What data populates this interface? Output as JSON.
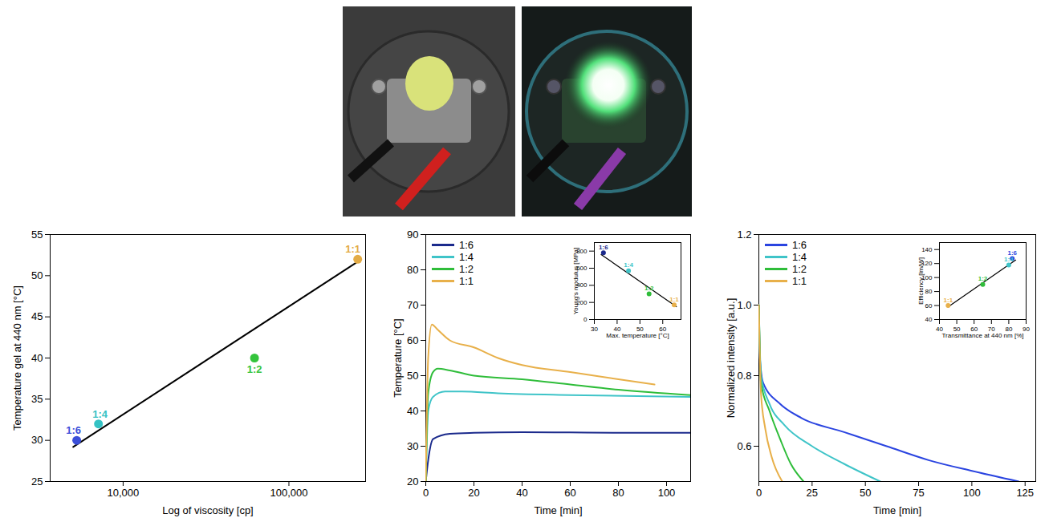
{
  "chart_data": [
    {
      "type": "scatter",
      "xlabel": "Log of viscosity [cp]",
      "ylabel": "Temperature gel at 440 nm [°C]",
      "log": "x",
      "categories": [
        "1:6",
        "1:4",
        "1:2",
        "1:1"
      ],
      "x": [
        5250,
        7100,
        62000,
        260000
      ],
      "values": [
        30,
        32,
        40,
        52
      ],
      "colors": [
        "#3b4fd9",
        "#35c2c4",
        "#34c43c",
        "#e3ab45"
      ],
      "fit": {
        "x": [
          5000,
          260000
        ],
        "values": [
          29.2,
          51.7
        ]
      },
      "xlim": [
        3630,
        290000
      ],
      "xticks": [
        {
          "value": 10000,
          "label": "10,000"
        },
        {
          "value": 100000,
          "label": "100,000"
        }
      ],
      "ylim": [
        25,
        55
      ],
      "yticks": [
        25,
        30,
        35,
        40,
        45,
        50,
        55
      ],
      "grid": false
    },
    {
      "type": "line",
      "xlabel": "Time [min]",
      "ylabel": "Temperature [°C]",
      "legend": "top-left",
      "series": [
        {
          "name": "1:6",
          "color": "#1b2a8c",
          "x": [
            0,
            1,
            3,
            10,
            20,
            40,
            60,
            80,
            110
          ],
          "values": [
            20,
            26,
            32,
            33.5,
            33.8,
            34,
            33.9,
            33.8,
            33.8
          ]
        },
        {
          "name": "1:4",
          "color": "#3fc4c8",
          "x": [
            0,
            1,
            3,
            8,
            15,
            30,
            60,
            110
          ],
          "values": [
            20,
            40,
            44,
            45.5,
            45.5,
            45,
            44.5,
            44
          ]
        },
        {
          "name": "1:2",
          "color": "#2fbd3a",
          "x": [
            0,
            1,
            3,
            5,
            10,
            20,
            40,
            60,
            80,
            110
          ],
          "values": [
            20,
            45,
            51,
            52,
            51.5,
            50,
            49,
            47.5,
            46,
            44.5
          ]
        },
        {
          "name": "1:1",
          "color": "#e8b04a",
          "x": [
            0,
            1,
            2.5,
            5,
            10,
            20,
            30,
            40,
            60,
            80,
            95
          ],
          "values": [
            20,
            55,
            64.5,
            63,
            60,
            58,
            55,
            53,
            51,
            49,
            47.5
          ]
        }
      ],
      "xlim": [
        0,
        110
      ],
      "xticks": [
        0,
        20,
        40,
        60,
        80,
        100
      ],
      "ylim": [
        20,
        90
      ],
      "yticks": [
        20,
        30,
        40,
        50,
        60,
        70,
        80,
        90
      ],
      "grid": false
    },
    {
      "type": "scatter",
      "xlabel": "Max. temperature [°C]",
      "ylabel": "Young's modulus [MPa]",
      "categories": [
        "1:6",
        "1:4",
        "1:2",
        "1:1"
      ],
      "x": [
        34,
        45,
        54,
        65
      ],
      "values": [
        780,
        570,
        300,
        170
      ],
      "colors": [
        "#1b2a8c",
        "#3fc4c8",
        "#2fbd3a",
        "#e8b04a"
      ],
      "fit": {
        "x": [
          33,
          66
        ],
        "values": [
          760,
          150
        ]
      },
      "xlim": [
        30,
        68
      ],
      "xticks": [
        30,
        40,
        50,
        60
      ],
      "ylim": [
        0,
        900
      ],
      "yticks": [
        0,
        200,
        400,
        600,
        800
      ],
      "grid": false
    },
    {
      "type": "line",
      "xlabel": "Time [min]",
      "ylabel": "Normalized intensity [a.u.]",
      "legend": "top-left",
      "series": [
        {
          "name": "1:6",
          "color": "#2a44e0",
          "x": [
            0,
            0.5,
            2,
            10,
            20,
            40,
            60,
            80,
            100,
            122
          ],
          "values": [
            1.0,
            0.85,
            0.78,
            0.72,
            0.68,
            0.64,
            0.6,
            0.56,
            0.53,
            0.5
          ]
        },
        {
          "name": "1:4",
          "color": "#3fc4c8",
          "x": [
            0,
            1,
            5,
            12,
            25,
            40,
            57
          ],
          "values": [
            1.0,
            0.8,
            0.72,
            0.66,
            0.6,
            0.55,
            0.5
          ]
        },
        {
          "name": "1:2",
          "color": "#2fbd3a",
          "x": [
            0,
            1,
            5,
            10,
            15,
            21
          ],
          "values": [
            1.0,
            0.78,
            0.7,
            0.62,
            0.55,
            0.5
          ]
        },
        {
          "name": "1:1",
          "color": "#e8b04a",
          "x": [
            0,
            1,
            3,
            6,
            11
          ],
          "values": [
            1.0,
            0.75,
            0.65,
            0.57,
            0.5
          ]
        }
      ],
      "xlim": [
        0,
        130
      ],
      "xticks": [
        0,
        25,
        50,
        75,
        100,
        125
      ],
      "ylim": [
        0.5,
        1.2
      ],
      "yticks": [
        0.6,
        0.8,
        {
          "value": 1,
          "label": "1.0"
        },
        1.2
      ],
      "grid": false
    },
    {
      "type": "scatter",
      "xlabel": "Transmittance at 440 nm [%]",
      "ylabel": "Efficiency [lm/W]",
      "categories": [
        "1:1",
        "1:2",
        "1:4",
        "1:6"
      ],
      "x": [
        45,
        65,
        80,
        82
      ],
      "values": [
        60,
        90,
        118,
        127
      ],
      "colors": [
        "#e8b04a",
        "#2fbd3a",
        "#3fc4c8",
        "#2a44e0"
      ],
      "fit": {
        "x": [
          45,
          84
        ],
        "values": [
          58,
          125
        ]
      },
      "xlim": [
        40,
        90
      ],
      "xticks": [
        40,
        50,
        60,
        70,
        80,
        90
      ],
      "ylim": [
        40,
        150
      ],
      "yticks": [
        40,
        60,
        80,
        100,
        120,
        140
      ],
      "grid": false
    }
  ]
}
